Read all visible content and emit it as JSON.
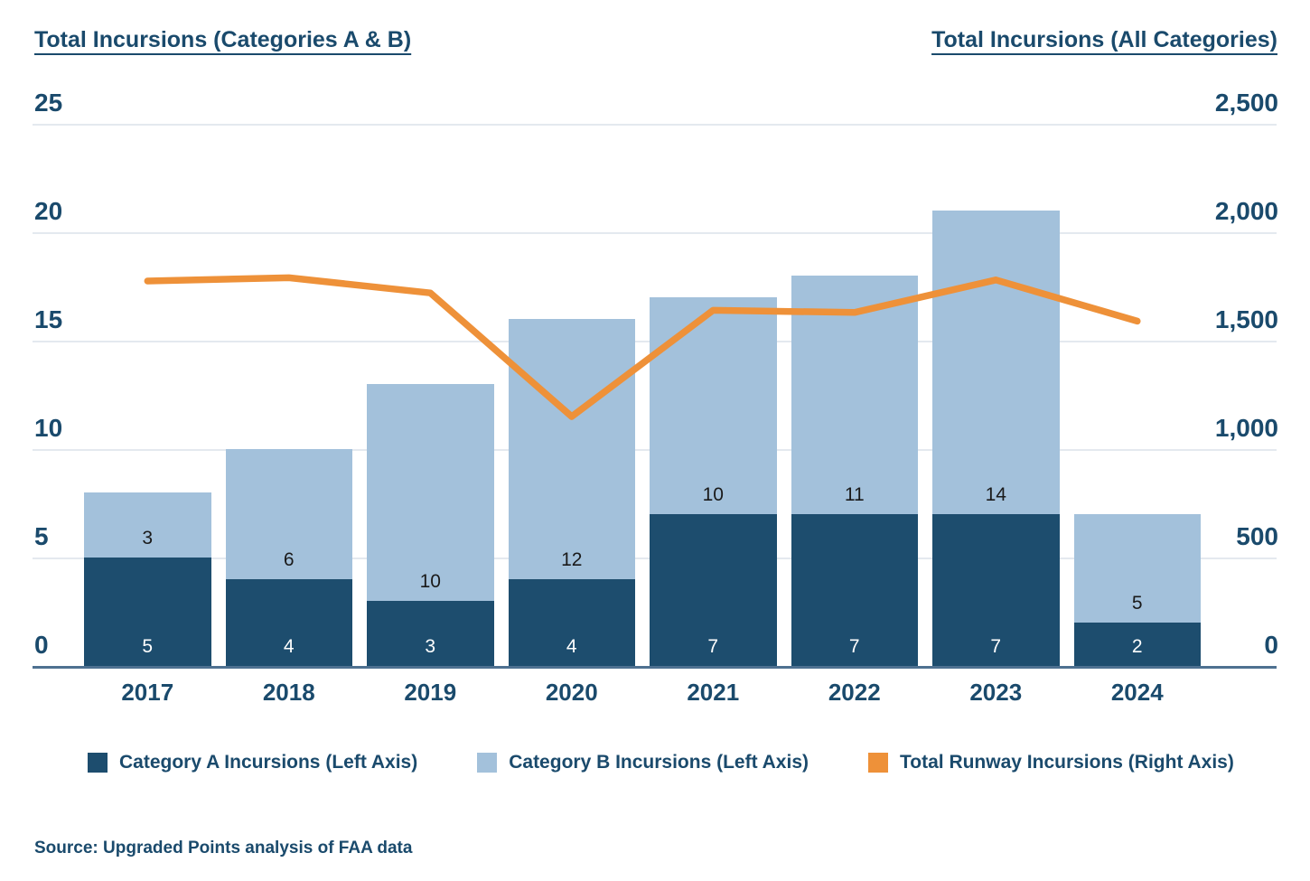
{
  "source": "Source: Upgraded Points analysis of FAA data",
  "colors": {
    "text": "#1A4A6C",
    "gridline": "#E4E9EF",
    "axis_line": "#4E7191",
    "background": "#FFFFFF",
    "category_a": "#1D4D6E",
    "category_b": "#A3C1DB",
    "line": "#EE9139"
  },
  "chart_data": {
    "type": "bar",
    "subtype": "stacked-bar-with-line-combo",
    "categories": [
      "2017",
      "2018",
      "2019",
      "2020",
      "2021",
      "2022",
      "2023",
      "2024"
    ],
    "series": [
      {
        "name": "Category A Incursions (Left Axis)",
        "type": "bar",
        "axis": "left",
        "color": "#1D4D6E",
        "label_color": "#FFFFFF",
        "values": [
          5,
          4,
          3,
          4,
          7,
          7,
          7,
          2
        ]
      },
      {
        "name": "Category B Incursions (Left Axis)",
        "type": "bar",
        "axis": "left",
        "color": "#A3C1DB",
        "label_color": "#1A1A1A",
        "values": [
          3,
          6,
          10,
          12,
          10,
          11,
          14,
          5
        ]
      },
      {
        "name": "Total Runway Incursions (Right Axis)",
        "type": "line",
        "axis": "right",
        "color": "#EE9139",
        "values": [
          1775,
          1790,
          1720,
          1150,
          1640,
          1630,
          1780,
          1590
        ]
      }
    ],
    "left_axis": {
      "title": "Total Incursions (Categories A & B)",
      "ticks": [
        "25",
        "20",
        "15",
        "10",
        "5",
        "0"
      ],
      "min": 0,
      "max": 25
    },
    "right_axis": {
      "title": "Total Incursions (All Categories)",
      "ticks": [
        "2,500",
        "2,000",
        "1,500",
        "1,000",
        "500",
        "0"
      ],
      "min": 0,
      "max": 2500
    },
    "grid": true,
    "legend_position": "bottom",
    "data_labels": true
  }
}
